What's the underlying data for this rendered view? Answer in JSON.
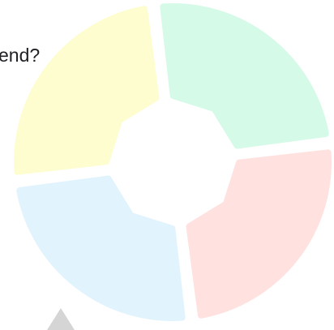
{
  "prompt": "end?",
  "wheel": {
    "segments": [
      {
        "color": "#d6fae8"
      },
      {
        "color": "#ffe1df"
      },
      {
        "color": "#e1f3fd"
      },
      {
        "color": "#fefdd0"
      }
    ]
  }
}
